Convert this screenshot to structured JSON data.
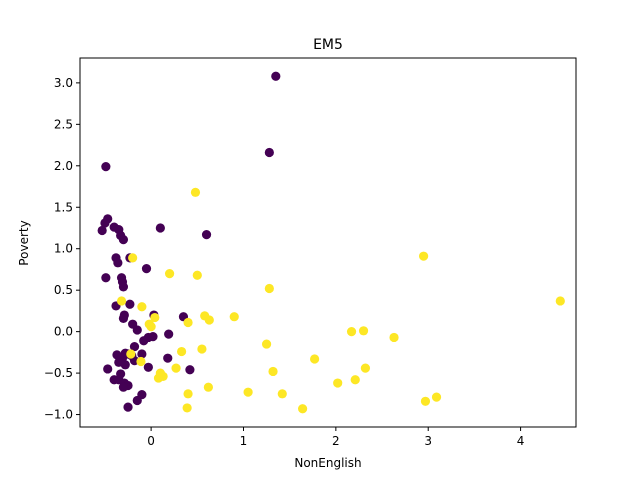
{
  "chart_data": {
    "type": "scatter",
    "title": "EM5",
    "xlabel": "NonEnglish",
    "ylabel": "Poverty",
    "xlim": [
      -0.77,
      4.6
    ],
    "ylim": [
      -1.15,
      3.3
    ],
    "xticks": [
      0,
      1,
      2,
      3,
      4
    ],
    "yticks": [
      -1.0,
      -0.5,
      0.0,
      0.5,
      1.0,
      1.5,
      2.0,
      2.5,
      3.0
    ],
    "grid": false,
    "colors": {
      "cluster_0": "#440154",
      "cluster_1": "#fde725"
    },
    "series": [
      {
        "color": "#440154",
        "x": [
          1.35,
          1.28,
          -0.49,
          -0.47,
          -0.5,
          -0.4,
          -0.35,
          -0.33,
          -0.3,
          -0.53,
          0.1,
          0.6,
          -0.38,
          -0.36,
          -0.23,
          -0.05,
          -0.49,
          -0.32,
          -0.31,
          -0.3,
          -0.38,
          -0.23,
          -0.29,
          -0.3,
          -0.2,
          -0.15,
          0.03,
          0.35,
          0.19,
          -0.03,
          0.02,
          -0.08,
          -0.18,
          -0.1,
          -0.25,
          -0.28,
          -0.37,
          -0.31,
          -0.18,
          -0.21,
          -0.35,
          -0.28,
          -0.47,
          -0.03,
          0.18,
          0.42,
          -0.4,
          -0.33,
          -0.35,
          -0.29,
          -0.25,
          -0.1,
          -0.3,
          -0.15,
          -0.25
        ],
        "y": [
          3.08,
          2.16,
          1.99,
          1.36,
          1.31,
          1.26,
          1.23,
          1.16,
          1.11,
          1.22,
          1.25,
          1.17,
          0.89,
          0.83,
          0.89,
          0.76,
          0.65,
          0.65,
          0.6,
          0.54,
          0.31,
          0.33,
          0.2,
          0.16,
          0.09,
          0.02,
          0.2,
          0.18,
          -0.03,
          -0.07,
          -0.06,
          -0.11,
          -0.18,
          -0.27,
          -0.27,
          -0.26,
          -0.28,
          -0.32,
          -0.35,
          -0.29,
          -0.37,
          -0.4,
          -0.45,
          -0.43,
          -0.32,
          -0.46,
          -0.58,
          -0.51,
          -0.58,
          -0.62,
          -0.65,
          -0.76,
          -0.67,
          -0.83,
          -0.91
        ]
      },
      {
        "color": "#fde725",
        "x": [
          0.48,
          -0.2,
          0.2,
          0.5,
          -0.32,
          -0.1,
          0.58,
          0.63,
          0.9,
          1.28,
          0.04,
          -0.02,
          0.0,
          0.4,
          1.25,
          0.55,
          0.33,
          1.77,
          2.17,
          2.3,
          2.63,
          2.95,
          4.43,
          2.32,
          1.32,
          0.27,
          0.1,
          0.13,
          0.08,
          2.21,
          2.02,
          0.62,
          1.05,
          1.42,
          0.4,
          0.39,
          1.64,
          2.97,
          3.09,
          -0.22,
          -0.11
        ],
        "y": [
          1.68,
          0.89,
          0.7,
          0.68,
          0.37,
          0.3,
          0.19,
          0.14,
          0.18,
          0.52,
          0.17,
          0.09,
          0.06,
          0.11,
          -0.15,
          -0.21,
          -0.24,
          -0.33,
          0.0,
          0.01,
          -0.07,
          0.91,
          0.37,
          -0.44,
          -0.48,
          -0.44,
          -0.5,
          -0.54,
          -0.56,
          -0.58,
          -0.62,
          -0.67,
          -0.73,
          -0.75,
          -0.75,
          -0.92,
          -0.93,
          -0.84,
          -0.79,
          -0.27,
          -0.36
        ]
      }
    ]
  }
}
